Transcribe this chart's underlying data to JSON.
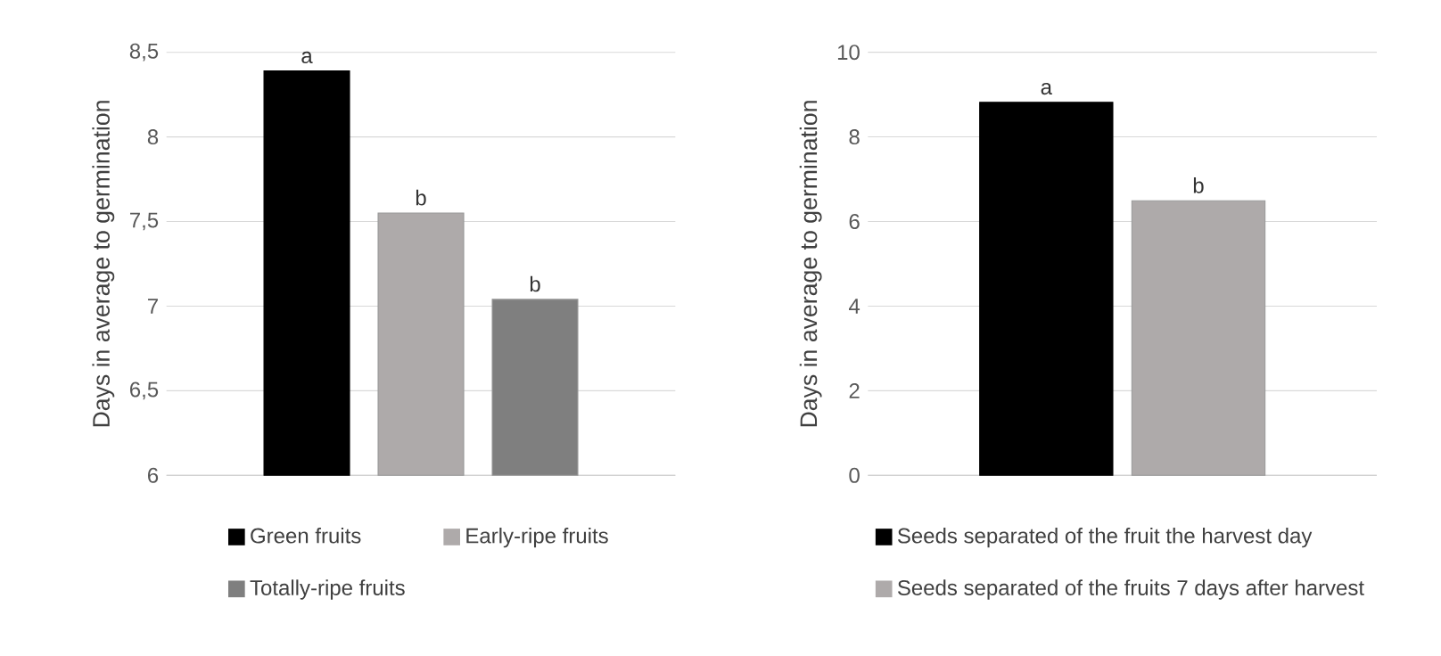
{
  "chart_data": [
    {
      "type": "bar",
      "ylabel": "Days in average to germination",
      "categories": [
        null
      ],
      "ylim": [
        6,
        8.5
      ],
      "yticks": [
        6,
        {
          "value": 6.5,
          "label": "6,5"
        },
        7,
        {
          "value": 7.5,
          "label": "7,5"
        },
        8,
        {
          "value": 8.5,
          "label": "8,5"
        }
      ],
      "grid": "y",
      "tick_labels": "y",
      "legend": "bottom",
      "series": [
        {
          "name": "Green fruits",
          "color": "#000000",
          "values": [
            8.39
          ],
          "value_labels": [
            "a"
          ]
        },
        {
          "name": "Early-ripe fruits",
          "color": "#aeaaaa",
          "values": [
            7.55
          ],
          "value_labels": [
            "b"
          ]
        },
        {
          "name": "Totally-ripe fruits",
          "color": "#7f7f7f",
          "values": [
            7.04
          ],
          "value_labels": [
            "b"
          ]
        }
      ]
    },
    {
      "type": "bar",
      "ylabel": "Days in average to germination",
      "categories": [
        null
      ],
      "ylim": [
        0,
        10
      ],
      "yticks": [
        0,
        2,
        4,
        6,
        8,
        10
      ],
      "grid": "y",
      "tick_labels": "y",
      "legend": "bottom",
      "series": [
        {
          "name": "Seeds separated of the fruit the harvest day",
          "color": "#000000",
          "values": [
            8.82
          ],
          "value_labels": [
            "a"
          ]
        },
        {
          "name": "Seeds separated of the fruits 7 days after harvest",
          "color": "#aeaaaa",
          "values": [
            6.49
          ],
          "value_labels": [
            "b"
          ]
        }
      ]
    }
  ]
}
